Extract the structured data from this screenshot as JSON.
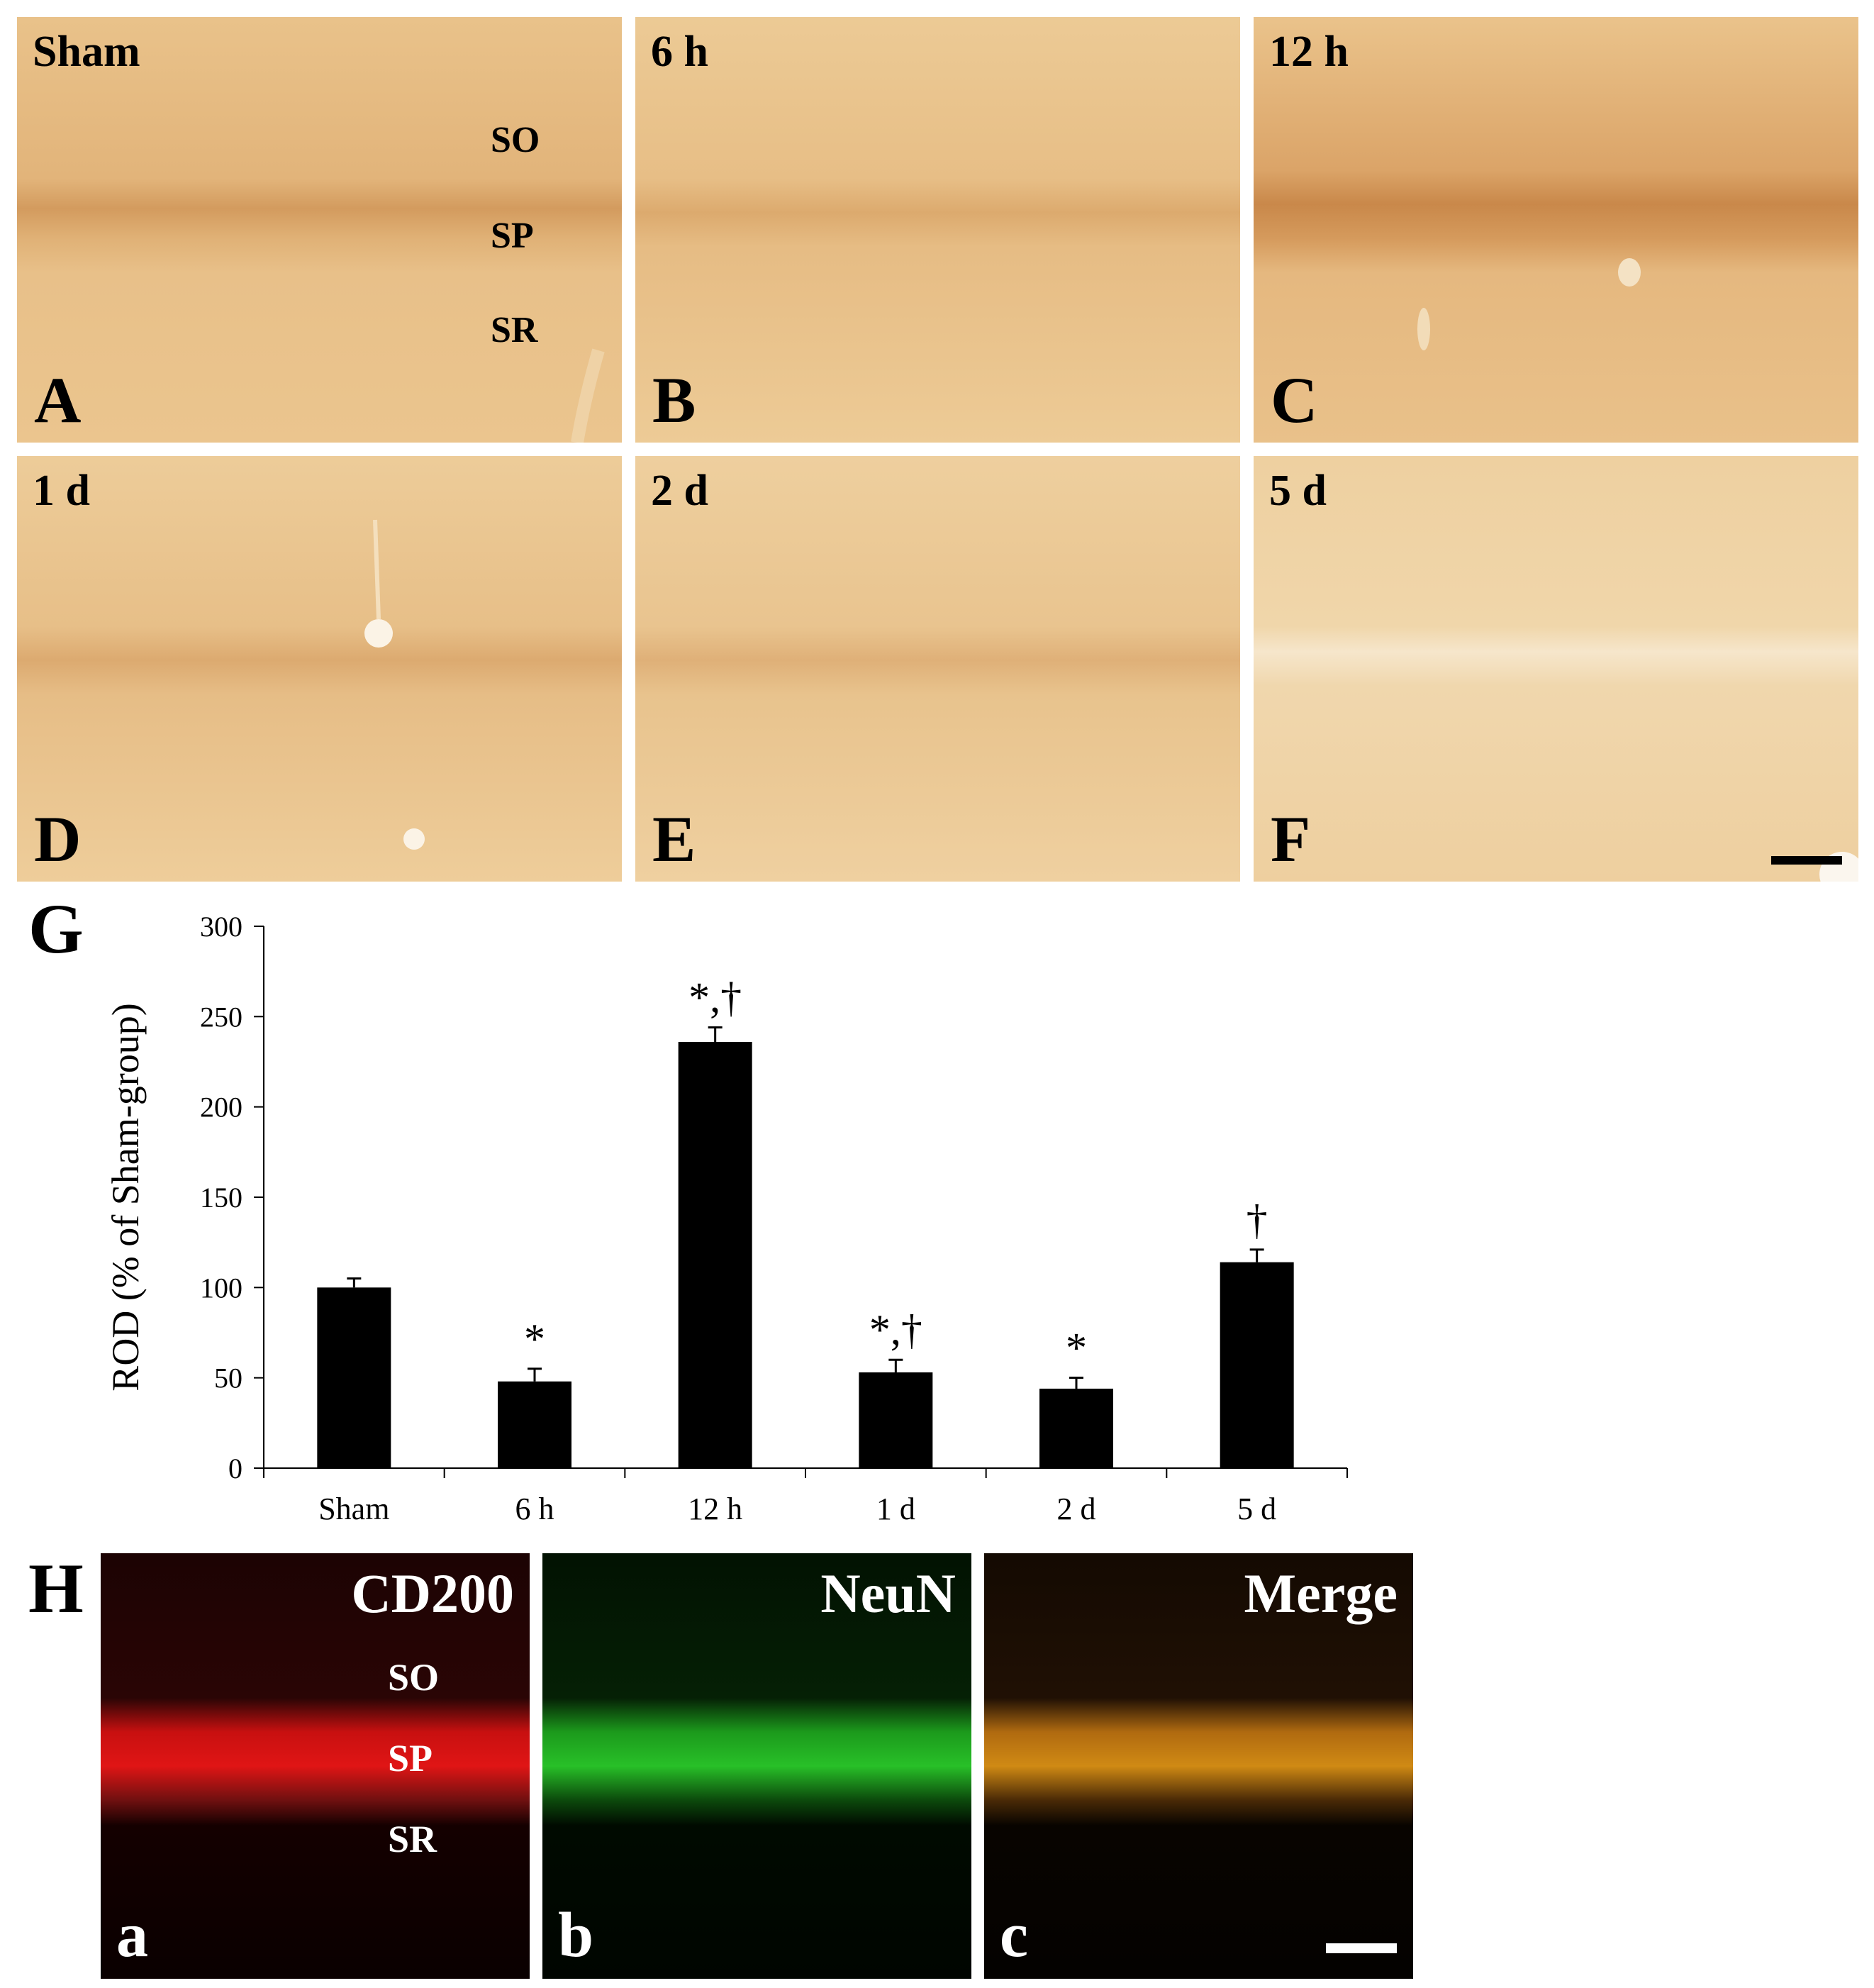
{
  "figure": {
    "ihc_panels": [
      {
        "letter": "A",
        "timepoint": "Sham",
        "layers": [
          "SO",
          "SP",
          "SR"
        ]
      },
      {
        "letter": "B",
        "timepoint": "6 h"
      },
      {
        "letter": "C",
        "timepoint": "12 h"
      },
      {
        "letter": "D",
        "timepoint": "1 d"
      },
      {
        "letter": "E",
        "timepoint": "2 d"
      },
      {
        "letter": "F",
        "timepoint": "5 d"
      }
    ],
    "chart_letter": "G",
    "fluor_letter": "H",
    "fluor_panels": [
      {
        "letter": "a",
        "title": "CD200",
        "layers": [
          "SO",
          "SP",
          "SR"
        ]
      },
      {
        "letter": "b",
        "title": "NeuN"
      },
      {
        "letter": "c",
        "title": "Merge"
      }
    ],
    "colors": {
      "ihc_background": "#ebc58d",
      "ihc_band": "#cf9355",
      "bar": "#000000",
      "red": "#e01010",
      "green": "#20c020",
      "merge": "#d08a10"
    }
  },
  "chart_data": {
    "type": "bar",
    "categories": [
      "Sham",
      "6 h",
      "12 h",
      "1 d",
      "2 d",
      "5 d"
    ],
    "values": [
      100,
      48,
      236,
      53,
      44,
      114
    ],
    "errors": [
      5,
      7,
      8,
      7,
      6,
      7
    ],
    "annotations": [
      "",
      "*",
      "*,†",
      "*,†",
      "*",
      "†"
    ],
    "ylabel": "ROD (% of Sham-group)",
    "ylim": [
      0,
      300
    ],
    "yticks": [
      0,
      50,
      100,
      150,
      200,
      250,
      300
    ],
    "grid": false,
    "legend": "none"
  }
}
